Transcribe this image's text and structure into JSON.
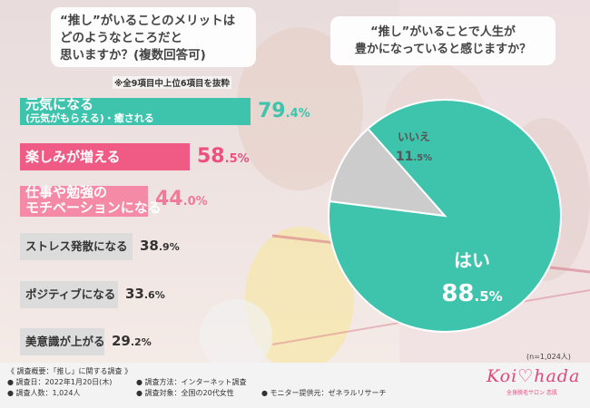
{
  "question_left": [
    "“推し”がいることのメリットは",
    "どのようなところだと",
    "思いますか？(複数回答可)"
  ],
  "note": "※全9項目中上位6項目を抜粋",
  "question_right": [
    "“推し”がいることで人生が",
    "豊かになっていると感じますか？"
  ],
  "bars": [
    {
      "label": "元気になる",
      "sublabel": "(元気がもらえる)・癒される",
      "int": "79",
      "dec": ".4%",
      "value": 79.4,
      "color": "#3ec4ad",
      "text_color": "#3ec4ad"
    },
    {
      "label": "楽しみが増える",
      "sublabel": "",
      "int": "58",
      "dec": ".5%",
      "value": 58.5,
      "color": "#f05b86",
      "text_color": "#ef4f7e"
    },
    {
      "label": "仕事や勉強の",
      "sublabel": "モチベーションになる",
      "int": "44",
      "dec": ".0%",
      "value": 44.0,
      "color": "#f58aa6",
      "text_color": "#f07a98"
    },
    {
      "label": "ストレス発散になる",
      "sublabel": "",
      "int": "38",
      "dec": ".9%",
      "value": 38.9,
      "color": "#dcdcdc",
      "text_color": "#333333"
    },
    {
      "label": "ポジティブになる",
      "sublabel": "",
      "int": "33",
      "dec": ".6%",
      "value": 33.6,
      "color": "#dcdcdc",
      "text_color": "#333333"
    },
    {
      "label": "美意識が上がる",
      "sublabel": "",
      "int": "29",
      "dec": ".2%",
      "value": 29.2,
      "color": "#dcdcdc",
      "text_color": "#333333"
    }
  ],
  "pie": {
    "slices": [
      {
        "label": "はい",
        "int": "88",
        "dec": ".5%",
        "value": 88.5,
        "color": "#3ec4ad"
      },
      {
        "label": "いいえ",
        "int": "11",
        "dec": ".5%",
        "value": 11.5,
        "color": "#cccccc"
      }
    ]
  },
  "n_note": "(n=1,024人)",
  "footer": {
    "title": "《 調査概要：「推し」に関する調査 》",
    "items": [
      "● 調査日：2022年1月20日(木)",
      "● 調査方法：インターネット調査",
      "● 調査人数：1,024人",
      "● 調査対象：全国の20代女性",
      "● モニター提供元：ゼネラルリサーチ"
    ]
  },
  "logo": {
    "main": "Koi♡hada",
    "sub": "全身脱毛サロン 恋肌"
  },
  "chart_data": [
    {
      "type": "bar",
      "title": "“推し”がいることのメリットはどのようなところだと思いますか？(複数回答可)",
      "categories": [
        "元気になる(元気がもらえる)・癒される",
        "楽しみが増える",
        "仕事や勉強のモチベーションになる",
        "ストレス発散になる",
        "ポジティブになる",
        "美意識が上がる"
      ],
      "values": [
        79.4,
        58.5,
        44.0,
        38.9,
        33.6,
        29.2
      ],
      "unit": "%",
      "orientation": "horizontal",
      "xlim": [
        0,
        100
      ]
    },
    {
      "type": "pie",
      "title": "“推し”がいることで人生が豊かになっていると感じますか？",
      "categories": [
        "はい",
        "いいえ"
      ],
      "values": [
        88.5,
        11.5
      ],
      "unit": "%"
    }
  ]
}
